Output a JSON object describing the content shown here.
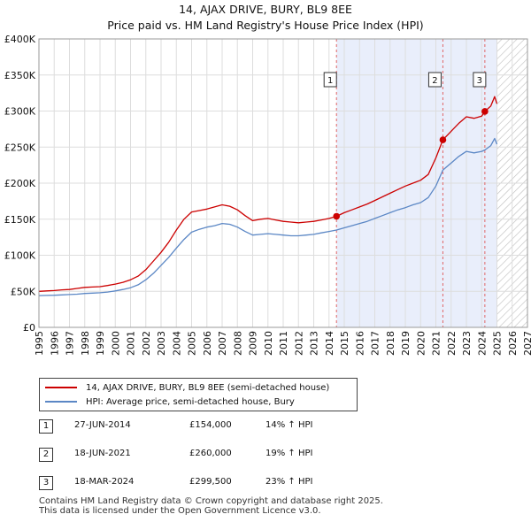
{
  "header": {
    "title": "14, AJAX DRIVE, BURY, BL9 8EE",
    "subtitle": "Price paid vs. HM Land Registry's House Price Index (HPI)"
  },
  "colors": {
    "price_line": "#cc0000",
    "hpi_line": "#5b87c5",
    "shade": "#e9eefb",
    "marker": "#cc0000"
  },
  "legend": {
    "price_label": "14, AJAX DRIVE, BURY, BL9 8EE (semi-detached house)",
    "hpi_label": "HPI: Average price, semi-detached house, Bury"
  },
  "sales": [
    {
      "num": "1",
      "date": "27-JUN-2014",
      "price": "£154,000",
      "hpi": "14% ↑ HPI"
    },
    {
      "num": "2",
      "date": "18-JUN-2021",
      "price": "£260,000",
      "hpi": "19% ↑ HPI"
    },
    {
      "num": "3",
      "date": "18-MAR-2024",
      "price": "£299,500",
      "hpi": "23% ↑ HPI"
    }
  ],
  "footer": {
    "line1": "Contains HM Land Registry data © Crown copyright and database right 2025.",
    "line2": "This data is licensed under the Open Government Licence v3.0."
  },
  "chart_data": {
    "type": "line",
    "xlim": [
      1995,
      2027
    ],
    "ylim": [
      0,
      400000
    ],
    "x_ticks": [
      "1995",
      "1996",
      "1997",
      "1998",
      "1999",
      "2000",
      "2001",
      "2002",
      "2003",
      "2004",
      "2005",
      "2006",
      "2007",
      "2008",
      "2009",
      "2010",
      "2011",
      "2012",
      "2013",
      "2014",
      "2015",
      "2016",
      "2017",
      "2018",
      "2019",
      "2020",
      "2021",
      "2022",
      "2023",
      "2024",
      "2025",
      "2026",
      "2027"
    ],
    "y_ticks": [
      {
        "value": 0,
        "label": "£0"
      },
      {
        "value": 50000,
        "label": "£50K"
      },
      {
        "value": 100000,
        "label": "£100K"
      },
      {
        "value": 150000,
        "label": "£150K"
      },
      {
        "value": 200000,
        "label": "£200K"
      },
      {
        "value": 250000,
        "label": "£250K"
      },
      {
        "value": 300000,
        "label": "£300K"
      },
      {
        "value": 350000,
        "label": "£350K"
      },
      {
        "value": 400000,
        "label": "£400K"
      }
    ],
    "grid": true,
    "shaded_period": [
      2014.49,
      2025.0
    ],
    "future_hatch_from": 2025.0,
    "sale_markers": [
      {
        "label": "1",
        "x": 2014.49,
        "y": 154000
      },
      {
        "label": "2",
        "x": 2021.46,
        "y": 260000
      },
      {
        "label": "3",
        "x": 2024.21,
        "y": 299500
      }
    ],
    "series": [
      {
        "name": "14, AJAX DRIVE, BURY, BL9 8EE (semi-detached house)",
        "x": [
          1995.0,
          1995.5,
          1996.0,
          1996.5,
          1997.0,
          1997.5,
          1998.0,
          1998.5,
          1999.0,
          1999.5,
          2000.0,
          2000.5,
          2001.0,
          2001.5,
          2002.0,
          2002.5,
          2003.0,
          2003.5,
          2004.0,
          2004.5,
          2005.0,
          2005.5,
          2006.0,
          2006.5,
          2007.0,
          2007.5,
          2008.0,
          2008.5,
          2009.0,
          2009.5,
          2010.0,
          2010.5,
          2011.0,
          2011.5,
          2012.0,
          2012.5,
          2013.0,
          2013.5,
          2014.0,
          2014.49,
          2015.0,
          2015.5,
          2016.0,
          2016.5,
          2017.0,
          2017.5,
          2018.0,
          2018.5,
          2019.0,
          2019.5,
          2020.0,
          2020.5,
          2021.0,
          2021.46,
          2022.0,
          2022.5,
          2023.0,
          2023.5,
          2024.0,
          2024.21,
          2024.6,
          2024.85,
          2025.0
        ],
        "y": [
          50000,
          50500,
          51000,
          52000,
          52500,
          54000,
          55500,
          56000,
          56500,
          58000,
          60000,
          62500,
          66000,
          71000,
          80000,
          92000,
          104000,
          118000,
          135000,
          150000,
          160000,
          162000,
          164000,
          167000,
          170000,
          168000,
          163000,
          155000,
          148000,
          150000,
          151000,
          149000,
          147000,
          146000,
          145000,
          146000,
          147000,
          149000,
          151000,
          154000,
          159000,
          163000,
          167000,
          171000,
          176000,
          181000,
          186000,
          191000,
          196000,
          200000,
          204000,
          212000,
          235000,
          260000,
          272000,
          283000,
          292000,
          290000,
          293000,
          299500,
          307000,
          320000,
          310000
        ]
      },
      {
        "name": "HPI: Average price, semi-detached house, Bury",
        "x": [
          1995.0,
          1995.5,
          1996.0,
          1996.5,
          1997.0,
          1997.5,
          1998.0,
          1998.5,
          1999.0,
          1999.5,
          2000.0,
          2000.5,
          2001.0,
          2001.5,
          2002.0,
          2002.5,
          2003.0,
          2003.5,
          2004.0,
          2004.5,
          2005.0,
          2005.5,
          2006.0,
          2006.5,
          2007.0,
          2007.5,
          2008.0,
          2008.5,
          2009.0,
          2009.5,
          2010.0,
          2010.5,
          2011.0,
          2011.5,
          2012.0,
          2012.5,
          2013.0,
          2013.5,
          2014.0,
          2014.49,
          2015.0,
          2015.5,
          2016.0,
          2016.5,
          2017.0,
          2017.5,
          2018.0,
          2018.5,
          2019.0,
          2019.5,
          2020.0,
          2020.5,
          2021.0,
          2021.46,
          2022.0,
          2022.5,
          2023.0,
          2023.5,
          2024.0,
          2024.21,
          2024.6,
          2024.85,
          2025.0
        ],
        "y": [
          44000,
          44300,
          44600,
          45000,
          45500,
          46000,
          47000,
          47500,
          48000,
          49000,
          50500,
          52500,
          55000,
          59000,
          66000,
          75000,
          86000,
          97000,
          110000,
          122000,
          132000,
          136000,
          139000,
          141000,
          144000,
          143000,
          139000,
          133000,
          128000,
          129000,
          130000,
          129000,
          128000,
          127000,
          127000,
          128000,
          129000,
          131000,
          133000,
          135000,
          138000,
          141000,
          144000,
          147000,
          151000,
          155000,
          159000,
          163000,
          166000,
          170000,
          173000,
          180000,
          196000,
          218000,
          228000,
          237000,
          244000,
          242000,
          244000,
          246000,
          252000,
          262000,
          254000
        ]
      }
    ]
  }
}
